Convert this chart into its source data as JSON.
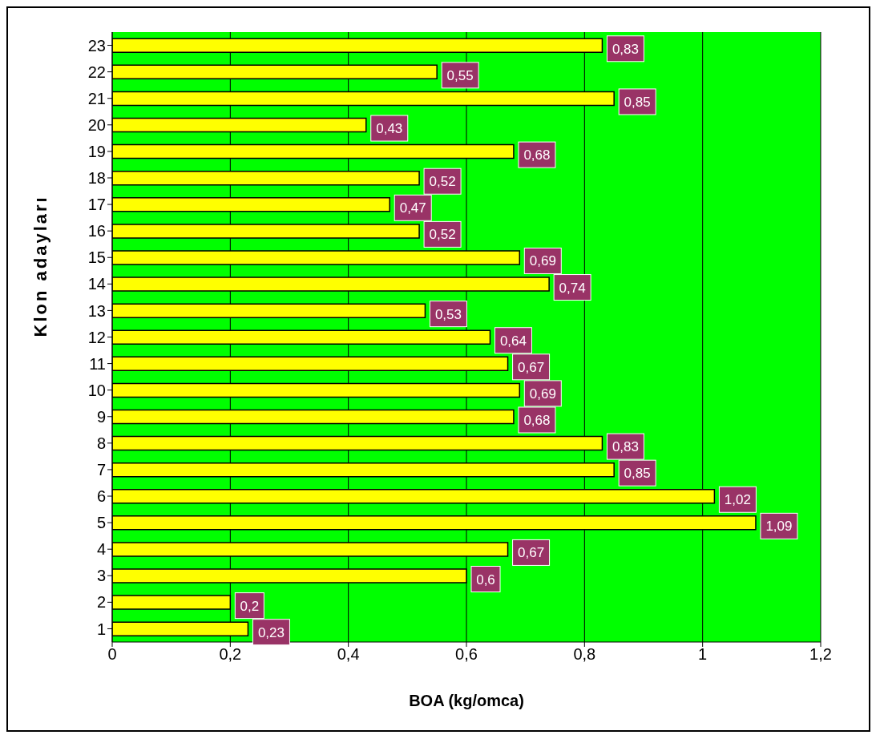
{
  "chart_data": {
    "type": "bar",
    "orientation": "horizontal",
    "xlabel": "BOA (kg/omca)",
    "ylabel": "Klon adayları",
    "categories": [
      "23",
      "22",
      "21",
      "20",
      "19",
      "18",
      "17",
      "16",
      "15",
      "14",
      "13",
      "12",
      "11",
      "10",
      "9",
      "8",
      "7",
      "6",
      "5",
      "4",
      "3",
      "2",
      "1"
    ],
    "values": [
      0.83,
      0.55,
      0.85,
      0.43,
      0.68,
      0.52,
      0.47,
      0.52,
      0.69,
      0.74,
      0.53,
      0.64,
      0.67,
      0.69,
      0.68,
      0.83,
      0.85,
      1.02,
      1.09,
      0.67,
      0.6,
      0.2,
      0.23
    ],
    "value_labels": [
      "0,83",
      "0,55",
      "0,85",
      "0,43",
      "0,68",
      "0,52",
      "0,47",
      "0,52",
      "0,69",
      "0,74",
      "0,53",
      "0,64",
      "0,67",
      "0,69",
      "0,68",
      "0,83",
      "0,85",
      "1,02",
      "1,09",
      "0,67",
      "0,6",
      "0,2",
      "0,23"
    ],
    "color": "#ffff00",
    "xlim": [
      0,
      1.2
    ],
    "xticks": [
      0,
      {
        "value": 0.2,
        "label": "0,2"
      },
      {
        "value": 0.4,
        "label": "0,4"
      },
      {
        "value": 0.6,
        "label": "0,6"
      },
      {
        "value": 0.8,
        "label": "0,8"
      },
      {
        "value": 1,
        "label": "1"
      },
      {
        "value": 1.2,
        "label": "1,2"
      }
    ],
    "grid": "x",
    "legend": false
  }
}
